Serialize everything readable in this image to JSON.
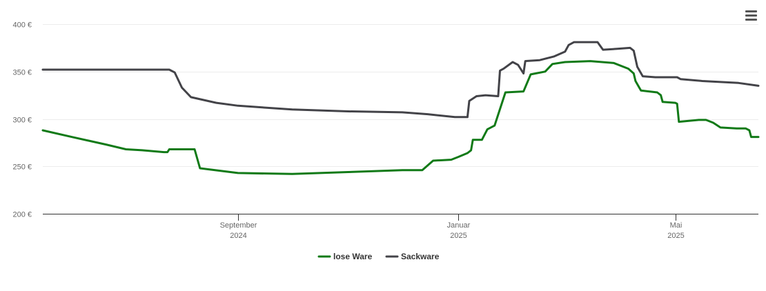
{
  "menu": {
    "icon": "hamburger-menu-icon"
  },
  "chart_data": {
    "type": "line",
    "title": "",
    "xlabel": "",
    "ylabel": "",
    "ylim": [
      200,
      400
    ],
    "yticks": [
      {
        "value": 200,
        "label": "200 €"
      },
      {
        "value": 250,
        "label": "250 €"
      },
      {
        "value": 300,
        "label": "300 €"
      },
      {
        "value": 350,
        "label": "350 €"
      },
      {
        "value": 400,
        "label": "400 €"
      }
    ],
    "xlim": [
      "2024-05-16",
      "2025-06-16"
    ],
    "xticks": [
      {
        "date": "2024-09-01",
        "label": "September",
        "sublabel": "2024"
      },
      {
        "date": "2025-01-01",
        "label": "Januar",
        "sublabel": "2025"
      },
      {
        "date": "2025-05-01",
        "label": "Mai",
        "sublabel": "2025"
      }
    ],
    "grid": "horizontal",
    "legend_position": "bottom-center",
    "series": [
      {
        "name": "lose Ware",
        "color": "#117a17",
        "points": [
          [
            "2024-05-16",
            288
          ],
          [
            "2024-06-01",
            281
          ],
          [
            "2024-06-20",
            273
          ],
          [
            "2024-07-10",
            267
          ],
          [
            "2024-07-01",
            268
          ],
          [
            "2024-07-22",
            265
          ],
          [
            "2024-07-24",
            265
          ],
          [
            "2024-07-25",
            268
          ],
          [
            "2024-08-05",
            268
          ],
          [
            "2024-08-08",
            268
          ],
          [
            "2024-08-11",
            248
          ],
          [
            "2024-09-01",
            243
          ],
          [
            "2024-10-01",
            242
          ],
          [
            "2024-11-01",
            244
          ],
          [
            "2024-12-01",
            246
          ],
          [
            "2024-12-12",
            246
          ],
          [
            "2024-12-18",
            256
          ],
          [
            "2024-12-28",
            257
          ],
          [
            "2025-01-01",
            260
          ],
          [
            "2025-01-06",
            264
          ],
          [
            "2025-01-08",
            267
          ],
          [
            "2025-01-09",
            278
          ],
          [
            "2025-01-14",
            278
          ],
          [
            "2025-01-17",
            289
          ],
          [
            "2025-01-21",
            293
          ],
          [
            "2025-01-27",
            328
          ],
          [
            "2025-02-06",
            329
          ],
          [
            "2025-02-10",
            347
          ],
          [
            "2025-02-18",
            350
          ],
          [
            "2025-02-22",
            358
          ],
          [
            "2025-03-01",
            360
          ],
          [
            "2025-03-15",
            361
          ],
          [
            "2025-03-28",
            359
          ],
          [
            "2025-04-05",
            353
          ],
          [
            "2025-04-08",
            348
          ],
          [
            "2025-04-09",
            340
          ],
          [
            "2025-04-12",
            330
          ],
          [
            "2025-04-21",
            328
          ],
          [
            "2025-04-23",
            325
          ],
          [
            "2025-04-24",
            318
          ],
          [
            "2025-05-01",
            317
          ],
          [
            "2025-05-02",
            316
          ],
          [
            "2025-05-03",
            297
          ],
          [
            "2025-05-14",
            299
          ],
          [
            "2025-05-18",
            299
          ],
          [
            "2025-05-22",
            296
          ],
          [
            "2025-05-26",
            291
          ],
          [
            "2025-06-04",
            290
          ],
          [
            "2025-06-09",
            290
          ],
          [
            "2025-06-11",
            288
          ],
          [
            "2025-06-12",
            281
          ],
          [
            "2025-06-16",
            281
          ]
        ]
      },
      {
        "name": "Sackware",
        "color": "#434348",
        "points": [
          [
            "2024-05-16",
            352
          ],
          [
            "2024-07-25",
            352
          ],
          [
            "2024-07-28",
            349
          ],
          [
            "2024-08-01",
            333
          ],
          [
            "2024-08-06",
            323
          ],
          [
            "2024-08-20",
            317
          ],
          [
            "2024-09-01",
            314
          ],
          [
            "2024-10-01",
            310
          ],
          [
            "2024-11-01",
            308
          ],
          [
            "2024-12-01",
            307
          ],
          [
            "2024-12-15",
            305
          ],
          [
            "2024-12-30",
            302
          ],
          [
            "2025-01-06",
            302
          ],
          [
            "2025-01-07",
            319
          ],
          [
            "2025-01-11",
            324
          ],
          [
            "2025-01-16",
            325
          ],
          [
            "2025-01-23",
            324
          ],
          [
            "2025-01-24",
            351
          ],
          [
            "2025-01-26",
            353
          ],
          [
            "2025-01-31",
            360
          ],
          [
            "2025-02-03",
            357
          ],
          [
            "2025-02-06",
            348
          ],
          [
            "2025-02-07",
            361
          ],
          [
            "2025-02-15",
            362
          ],
          [
            "2025-02-23",
            366
          ],
          [
            "2025-03-01",
            371
          ],
          [
            "2025-03-03",
            378
          ],
          [
            "2025-03-06",
            381
          ],
          [
            "2025-03-19",
            381
          ],
          [
            "2025-03-22",
            373
          ],
          [
            "2025-03-30",
            374
          ],
          [
            "2025-04-06",
            375
          ],
          [
            "2025-04-08",
            372
          ],
          [
            "2025-04-10",
            355
          ],
          [
            "2025-04-13",
            345
          ],
          [
            "2025-04-20",
            344
          ],
          [
            "2025-05-02",
            344
          ],
          [
            "2025-05-04",
            342
          ],
          [
            "2025-05-16",
            340
          ],
          [
            "2025-05-26",
            339
          ],
          [
            "2025-06-05",
            338
          ],
          [
            "2025-06-16",
            335
          ]
        ]
      }
    ]
  }
}
